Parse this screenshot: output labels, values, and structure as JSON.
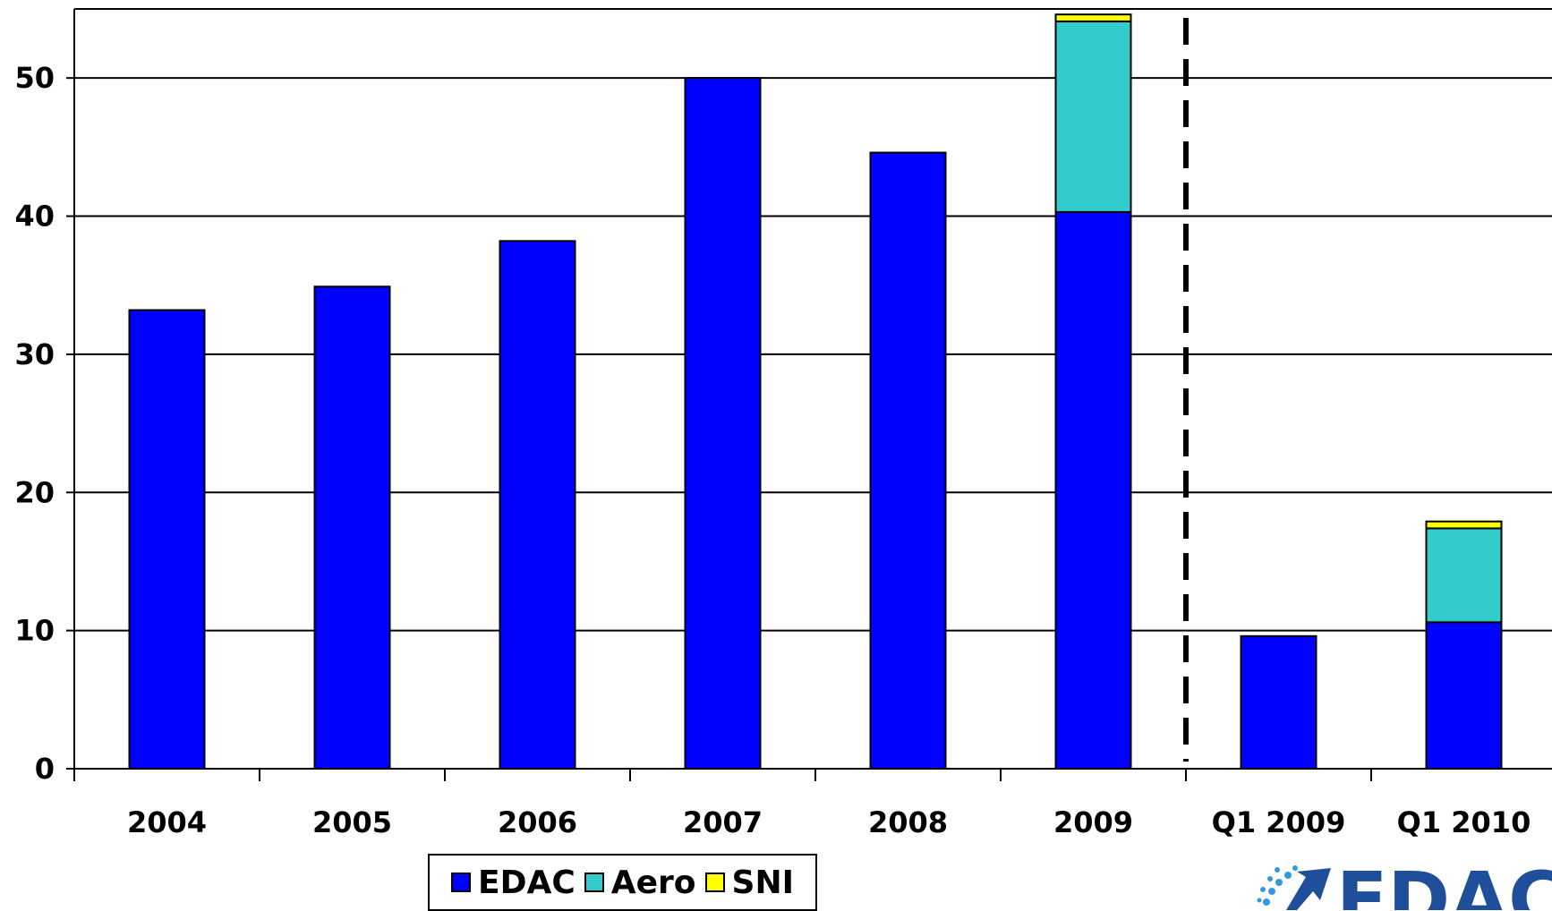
{
  "chart_data": {
    "type": "bar",
    "stacked": true,
    "title": "",
    "xlabel": "",
    "ylabel": "",
    "categories": [
      "2004",
      "2005",
      "2006",
      "2007",
      "2008",
      "2009",
      "Q1 2009",
      "Q1 2010"
    ],
    "series": [
      {
        "name": "EDAC",
        "color": "#0000FF",
        "values": [
          33.2,
          34.9,
          38.2,
          50.0,
          44.6,
          40.3,
          9.6,
          10.6
        ]
      },
      {
        "name": "Aero",
        "color": "#33CCCC",
        "values": [
          0,
          0,
          0,
          0,
          0,
          13.8,
          0,
          6.8
        ]
      },
      {
        "name": "SNI",
        "color": "#FFFF00",
        "values": [
          0,
          0,
          0,
          0,
          0,
          0.5,
          0,
          0.5
        ]
      }
    ],
    "ylim": [
      0,
      55
    ],
    "yticks": [
      0,
      10,
      20,
      30,
      40,
      50
    ],
    "grid": true,
    "legend_position": "bottom",
    "separator_after_category": "2009"
  },
  "logo": {
    "text": "EDAC"
  }
}
